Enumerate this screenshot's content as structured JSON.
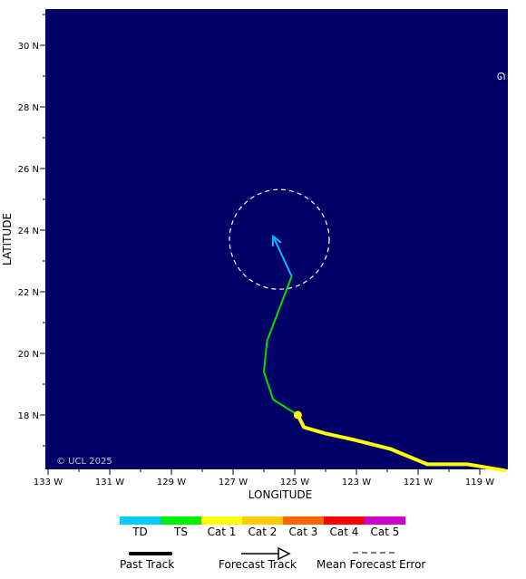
{
  "map": {
    "xlabel": "LONGITUDE",
    "ylabel": "LATITUDE",
    "copyright": "© UCL 2025",
    "lon_ticks": [
      "133 W",
      "131 W",
      "129 W",
      "127 W",
      "125 W",
      "123 W",
      "121 W",
      "119 W"
    ],
    "lat_ticks": [
      "18 N",
      "20 N",
      "22 N",
      "24 N",
      "26 N",
      "28 N",
      "30 N"
    ],
    "colors": {
      "ocean": "#000066",
      "past_track": "#ffff00",
      "forecast_ts": "#00dd00",
      "forecast_td": "#00bbff",
      "error_cone": "#ffffff"
    }
  },
  "track": {
    "past": [
      {
        "lon": 118.2,
        "lat": 16.2
      },
      {
        "lon": 119.4,
        "lat": 16.4
      },
      {
        "lon": 120.7,
        "lat": 16.4
      },
      {
        "lon": 121.9,
        "lat": 16.9
      },
      {
        "lon": 123.1,
        "lat": 17.2
      },
      {
        "lon": 124.0,
        "lat": 17.4
      },
      {
        "lon": 124.7,
        "lat": 17.6
      },
      {
        "lon": 124.9,
        "lat": 18.0
      }
    ],
    "current": {
      "lon": 124.9,
      "lat": 18.0
    },
    "forecast_ts": [
      {
        "lon": 124.9,
        "lat": 18.0
      },
      {
        "lon": 125.7,
        "lat": 18.5
      },
      {
        "lon": 126.0,
        "lat": 19.4
      },
      {
        "lon": 125.9,
        "lat": 20.4
      },
      {
        "lon": 125.1,
        "lat": 22.5
      }
    ],
    "forecast_td": [
      {
        "lon": 125.1,
        "lat": 22.5
      },
      {
        "lon": 125.7,
        "lat": 23.8
      }
    ],
    "error_circle": {
      "lon": 125.5,
      "lat": 23.7
    }
  },
  "legend": {
    "categories": [
      {
        "label": "TD",
        "color": "#00ccff"
      },
      {
        "label": "TS",
        "color": "#00ee00"
      },
      {
        "label": "Cat 1",
        "color": "#ffff00"
      },
      {
        "label": "Cat 2",
        "color": "#ffcc00"
      },
      {
        "label": "Cat 3",
        "color": "#ff6600"
      },
      {
        "label": "Cat 4",
        "color": "#ff0000"
      },
      {
        "label": "Cat 5",
        "color": "#cc00cc"
      }
    ],
    "past_track": "Past Track",
    "forecast_track": "Forecast Track",
    "mean_forecast_error": "Mean Forecast Error"
  }
}
